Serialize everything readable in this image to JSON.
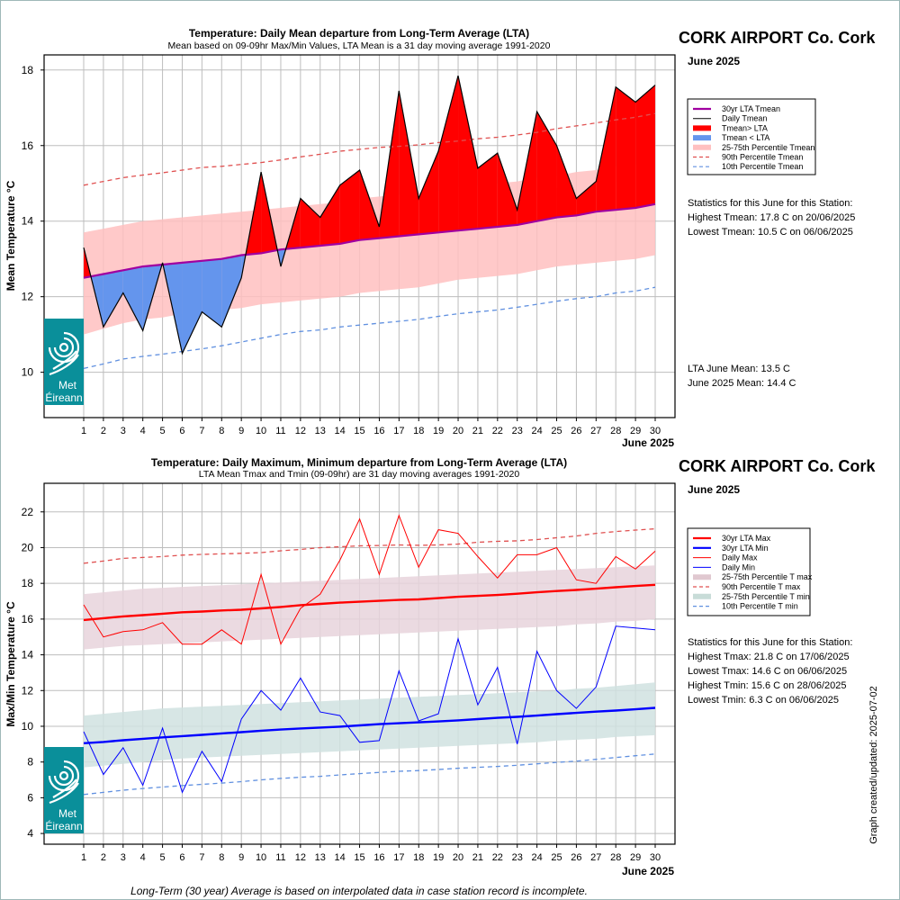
{
  "chart_data": [
    {
      "type": "area",
      "title": "Temperature: Daily Mean departure from Long-Term Average (LTA)",
      "subtitle": "Mean based on 09-09hr Max/Min Values, LTA Mean is a 31 day moving average 1991-2020",
      "station": "CORK AIRPORT Co. Cork",
      "month": "June 2025",
      "xlabel": "June 2025",
      "ylabel": "Mean Temperature °C",
      "ylim": [
        8.8,
        18.4
      ],
      "yticks": [
        10,
        12,
        14,
        16,
        18
      ],
      "x": [
        1,
        2,
        3,
        4,
        5,
        6,
        7,
        8,
        9,
        10,
        11,
        12,
        13,
        14,
        15,
        16,
        17,
        18,
        19,
        20,
        21,
        22,
        23,
        24,
        25,
        26,
        27,
        28,
        29,
        30
      ],
      "series": [
        {
          "name": "30yr LTA Tmean",
          "color": "#a000a0",
          "values": [
            12.5,
            12.6,
            12.7,
            12.8,
            12.85,
            12.9,
            12.95,
            13.0,
            13.1,
            13.15,
            13.25,
            13.3,
            13.35,
            13.4,
            13.5,
            13.55,
            13.6,
            13.65,
            13.7,
            13.75,
            13.8,
            13.85,
            13.9,
            14.0,
            14.1,
            14.15,
            14.25,
            14.3,
            14.35,
            14.45
          ]
        },
        {
          "name": "Daily Tmean",
          "color": "#000000",
          "values": [
            13.3,
            11.2,
            12.1,
            11.1,
            12.9,
            10.5,
            11.6,
            11.2,
            12.5,
            15.3,
            12.8,
            14.6,
            14.1,
            14.95,
            15.35,
            13.85,
            17.45,
            14.6,
            15.85,
            17.85,
            15.4,
            15.8,
            14.3,
            16.9,
            16.0,
            14.6,
            15.05,
            17.55,
            17.15,
            17.6
          ]
        },
        {
          "name": "25-75th Percentile Tmean",
          "color": "#ffc0c0",
          "low": [
            11.0,
            11.15,
            11.3,
            11.4,
            11.45,
            11.55,
            11.6,
            11.65,
            11.7,
            11.8,
            11.85,
            11.9,
            11.95,
            12.0,
            12.1,
            12.15,
            12.2,
            12.25,
            12.35,
            12.45,
            12.5,
            12.55,
            12.6,
            12.7,
            12.8,
            12.85,
            12.9,
            12.95,
            13.0,
            13.1
          ],
          "high": [
            13.7,
            13.8,
            13.9,
            14.0,
            14.05,
            14.1,
            14.15,
            14.2,
            14.25,
            14.3,
            14.35,
            14.4,
            14.45,
            14.5,
            14.6,
            14.65,
            14.7,
            14.75,
            14.8,
            14.9,
            14.95,
            15.0,
            15.05,
            15.15,
            15.2,
            15.3,
            15.35,
            15.45,
            15.5,
            15.6
          ]
        },
        {
          "name": "90th Percentile Tmean",
          "color": "#e05050",
          "values": [
            14.95,
            15.05,
            15.15,
            15.22,
            15.28,
            15.35,
            15.42,
            15.45,
            15.5,
            15.55,
            15.62,
            15.7,
            15.77,
            15.85,
            15.9,
            15.95,
            15.98,
            16.02,
            16.08,
            16.12,
            16.18,
            16.22,
            16.28,
            16.35,
            16.45,
            16.52,
            16.6,
            16.68,
            16.75,
            16.85
          ]
        },
        {
          "name": "10th Percentile Tmean",
          "color": "#6090e0",
          "values": [
            10.1,
            10.22,
            10.35,
            10.42,
            10.48,
            10.55,
            10.62,
            10.7,
            10.8,
            10.9,
            11.0,
            11.08,
            11.12,
            11.2,
            11.25,
            11.3,
            11.35,
            11.4,
            11.48,
            11.55,
            11.6,
            11.65,
            11.72,
            11.8,
            11.88,
            11.95,
            12.0,
            12.1,
            12.15,
            12.25
          ]
        }
      ],
      "legend": {
        "placement": "right",
        "entries": [
          {
            "label": "30yr LTA Tmean",
            "style": "line",
            "color": "#a000a0"
          },
          {
            "label": "Daily Tmean",
            "style": "thin",
            "color": "#000000"
          },
          {
            "label": "Tmean> LTA",
            "style": "thick",
            "color": "#ff0000"
          },
          {
            "label": "Tmean < LTA",
            "style": "thick",
            "color": "#6495ed"
          },
          {
            "label": "25-75th Percentile Tmean",
            "style": "thick",
            "color": "#ffc0c0"
          },
          {
            "label": "90th Percentile Tmean",
            "style": "dash",
            "color": "#e05050"
          },
          {
            "label": "10th Percentile Tmean",
            "style": "dash",
            "color": "#6090e0"
          }
        ]
      },
      "stats_heading": "Statistics for this June for this Station:",
      "stats": [
        "Highest Tmean: 17.8 C on 20/06/2025",
        "Lowest Tmean: 10.5 C on 06/06/2025"
      ],
      "means": [
        "LTA June Mean: 13.5 C",
        "June 2025 Mean: 14.4 C"
      ]
    },
    {
      "type": "line",
      "title": "Temperature: Daily Maximum, Minimum departure from Long-Term Average (LTA)",
      "subtitle": "LTA Mean Tmax and Tmin (09-09hr) are 31 day moving averages 1991-2020",
      "station": "CORK AIRPORT Co. Cork",
      "month": "June 2025",
      "xlabel": "June 2025",
      "ylabel": "Max/Min Temperature °C",
      "ylim": [
        3.4,
        23.6
      ],
      "yticks": [
        4,
        6,
        8,
        10,
        12,
        14,
        16,
        18,
        20,
        22
      ],
      "x": [
        1,
        2,
        3,
        4,
        5,
        6,
        7,
        8,
        9,
        10,
        11,
        12,
        13,
        14,
        15,
        16,
        17,
        18,
        19,
        20,
        21,
        22,
        23,
        24,
        25,
        26,
        27,
        28,
        29,
        30
      ],
      "series": [
        {
          "name": "30yr LTA Max",
          "color": "#ff0000",
          "values": [
            15.95,
            16.05,
            16.15,
            16.22,
            16.3,
            16.38,
            16.42,
            16.48,
            16.52,
            16.6,
            16.68,
            16.78,
            16.85,
            16.92,
            16.97,
            17.02,
            17.07,
            17.1,
            17.17,
            17.25,
            17.3,
            17.35,
            17.42,
            17.5,
            17.57,
            17.63,
            17.7,
            17.78,
            17.85,
            17.92
          ]
        },
        {
          "name": "30yr LTA Min",
          "color": "#0000ff",
          "values": [
            9.05,
            9.12,
            9.22,
            9.3,
            9.38,
            9.45,
            9.52,
            9.6,
            9.67,
            9.75,
            9.82,
            9.88,
            9.93,
            9.98,
            10.05,
            10.12,
            10.17,
            10.22,
            10.27,
            10.33,
            10.4,
            10.47,
            10.53,
            10.6,
            10.68,
            10.75,
            10.82,
            10.88,
            10.95,
            11.03
          ]
        },
        {
          "name": "Daily Max",
          "color": "#ff0000",
          "values": [
            16.8,
            15.0,
            15.3,
            15.4,
            15.8,
            14.6,
            14.6,
            15.4,
            14.6,
            18.5,
            14.6,
            16.6,
            17.4,
            19.3,
            21.6,
            18.5,
            21.8,
            18.9,
            21.0,
            20.8,
            19.5,
            18.3,
            19.6,
            19.6,
            20.0,
            18.2,
            18.0,
            19.5,
            18.8,
            19.8
          ]
        },
        {
          "name": "Daily Min",
          "color": "#0000ff",
          "values": [
            9.7,
            7.3,
            8.8,
            6.7,
            9.9,
            6.3,
            8.6,
            6.9,
            10.4,
            12.0,
            10.9,
            12.7,
            10.8,
            10.6,
            9.1,
            9.2,
            13.1,
            10.3,
            10.7,
            14.9,
            11.2,
            13.3,
            9.0,
            14.2,
            12.0,
            11.0,
            12.2,
            15.6,
            15.5,
            15.4
          ]
        },
        {
          "name": "25-75th Percentile T max",
          "color": "#e8d4dc",
          "low": [
            14.3,
            14.4,
            14.5,
            14.55,
            14.6,
            14.65,
            14.7,
            14.75,
            14.8,
            14.85,
            14.9,
            14.95,
            15.0,
            15.05,
            15.1,
            15.15,
            15.2,
            15.25,
            15.3,
            15.35,
            15.4,
            15.45,
            15.5,
            15.55,
            15.6,
            15.7,
            15.75,
            15.85,
            15.9,
            16.0
          ],
          "high": [
            17.4,
            17.5,
            17.6,
            17.7,
            17.75,
            17.8,
            17.85,
            17.9,
            17.95,
            18.0,
            18.05,
            18.1,
            18.15,
            18.2,
            18.25,
            18.3,
            18.35,
            18.4,
            18.45,
            18.5,
            18.55,
            18.6,
            18.65,
            18.7,
            18.75,
            18.8,
            18.85,
            18.9,
            18.95,
            19.0
          ]
        },
        {
          "name": "90th Percentile T max",
          "color": "#e05050",
          "values": [
            19.12,
            19.25,
            19.4,
            19.45,
            19.5,
            19.58,
            19.62,
            19.65,
            19.68,
            19.72,
            19.82,
            19.9,
            20.0,
            20.05,
            20.1,
            20.12,
            20.15,
            20.13,
            20.15,
            20.2,
            20.3,
            20.35,
            20.38,
            20.45,
            20.55,
            20.65,
            20.8,
            20.9,
            20.98,
            21.05
          ]
        },
        {
          "name": "25-75th Percentile T min",
          "color": "#d0e2e0",
          "low": [
            7.7,
            7.8,
            7.9,
            8.0,
            8.1,
            8.2,
            8.25,
            8.3,
            8.35,
            8.4,
            8.45,
            8.5,
            8.55,
            8.6,
            8.65,
            8.7,
            8.75,
            8.8,
            8.85,
            8.9,
            8.95,
            9.0,
            9.05,
            9.1,
            9.2,
            9.25,
            9.3,
            9.4,
            9.45,
            9.5
          ],
          "high": [
            10.6,
            10.7,
            10.8,
            10.9,
            11.0,
            11.05,
            11.1,
            11.15,
            11.2,
            11.25,
            11.3,
            11.35,
            11.4,
            11.45,
            11.5,
            11.55,
            11.6,
            11.65,
            11.7,
            11.75,
            11.8,
            11.85,
            11.9,
            11.95,
            12.0,
            12.1,
            12.15,
            12.25,
            12.35,
            12.45
          ]
        },
        {
          "name": "10th Percentile T min",
          "color": "#6090e0",
          "values": [
            6.18,
            6.3,
            6.42,
            6.52,
            6.6,
            6.68,
            6.75,
            6.82,
            6.9,
            7.0,
            7.08,
            7.15,
            7.2,
            7.28,
            7.35,
            7.42,
            7.48,
            7.52,
            7.58,
            7.65,
            7.7,
            7.75,
            7.82,
            7.9,
            7.98,
            8.05,
            8.15,
            8.25,
            8.35,
            8.45
          ]
        }
      ],
      "legend": {
        "placement": "right",
        "entries": [
          {
            "label": "30yr LTA Max",
            "style": "line",
            "color": "#ff0000"
          },
          {
            "label": "30yr LTA Min",
            "style": "line",
            "color": "#0000ff"
          },
          {
            "label": "Daily Max",
            "style": "thin",
            "color": "#ff0000"
          },
          {
            "label": "Daily Min",
            "style": "thin",
            "color": "#0000ff"
          },
          {
            "label": "25-75th Percentile T max",
            "style": "thick",
            "color": "#e0c8d0"
          },
          {
            "label": "90th Percentile T max",
            "style": "dash",
            "color": "#e05050"
          },
          {
            "label": "25-75th Percentile T min",
            "style": "thick",
            "color": "#c8dcd8"
          },
          {
            "label": "10th Percentile T min",
            "style": "dash",
            "color": "#6090e0"
          }
        ]
      },
      "stats_heading": "Statistics for this June for this Station:",
      "stats": [
        "Highest Tmax: 21.8 C on 17/06/2025",
        "Lowest Tmax: 14.6 C on 06/06/2025",
        "Highest Tmin: 15.6 C on 28/06/2025",
        "Lowest Tmin: 6.3 C on 06/06/2025"
      ]
    }
  ],
  "logo": {
    "line1": "Met",
    "line2": "Éireann",
    "bg": "#0a8f9a"
  },
  "updated": "Graph created/updated:  2025-07-02",
  "footer": "Long-Term (30 year) Average is based on interpolated data in case station record is incomplete."
}
